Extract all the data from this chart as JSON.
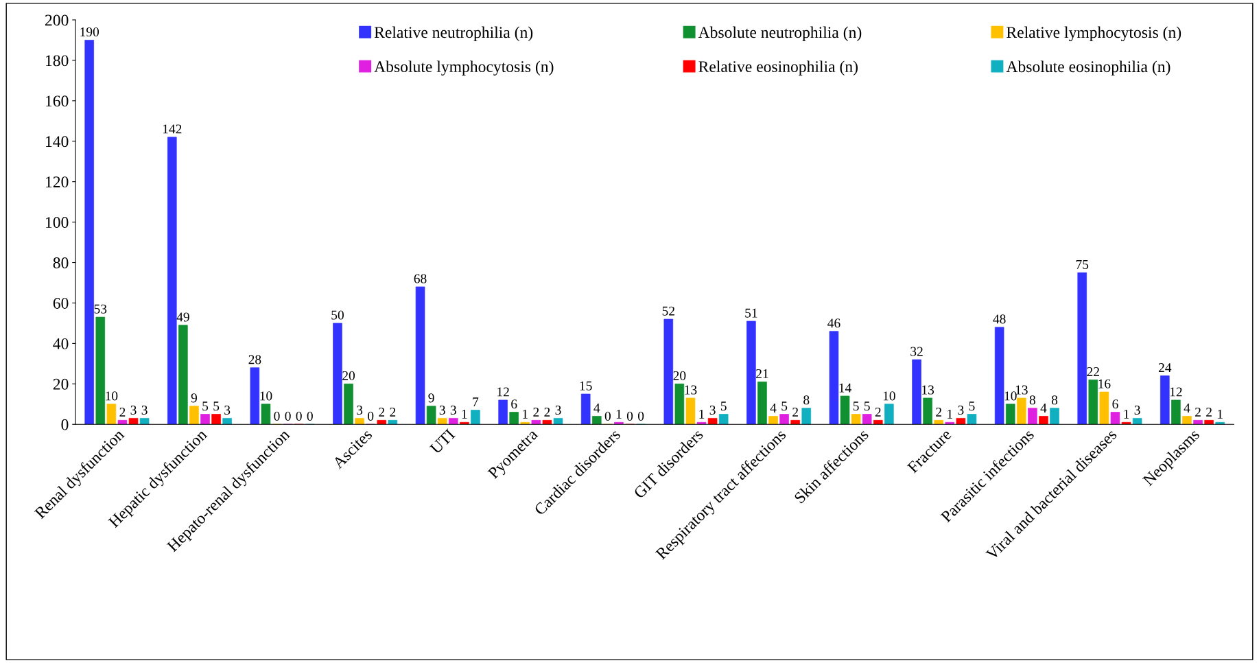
{
  "chart_data": {
    "type": "bar",
    "categories": [
      "Renal dysfunction",
      "Hepatic dysfunction",
      "Hepato-renal dysfunction",
      "Ascites",
      "UTI",
      "Pyometra",
      "Cardiac disorders",
      "GIT disorders",
      "Respiratory tract affections",
      "Skin affections",
      "Fracture",
      "Parasitic infections",
      "Viral and bacterial diseases",
      "Neoplasms"
    ],
    "series": [
      {
        "name": "Relative neutrophilia (n)",
        "color": "#3333ff",
        "values": [
          190,
          142,
          28,
          50,
          68,
          12,
          15,
          52,
          51,
          46,
          32,
          48,
          75,
          24
        ]
      },
      {
        "name": "Absolute neutrophilia (n)",
        "color": "#109030",
        "values": [
          53,
          49,
          10,
          20,
          9,
          6,
          4,
          20,
          21,
          14,
          13,
          10,
          22,
          12
        ]
      },
      {
        "name": "Relative lymphocytosis (n)",
        "color": "#ffc000",
        "values": [
          10,
          9,
          0,
          3,
          3,
          1,
          0,
          13,
          4,
          5,
          2,
          13,
          16,
          4
        ]
      },
      {
        "name": "Absolute lymphocytosis (n)",
        "color": "#e020e0",
        "values": [
          2,
          5,
          0,
          0,
          3,
          2,
          1,
          1,
          5,
          5,
          1,
          8,
          6,
          2
        ]
      },
      {
        "name": "Relative eosinophilia (n)",
        "color": "#ff0000",
        "values": [
          3,
          5,
          0,
          2,
          1,
          2,
          0,
          3,
          2,
          2,
          3,
          4,
          1,
          2
        ]
      },
      {
        "name": "Absolute eosinophilia (n)",
        "color": "#10b0c0",
        "values": [
          3,
          3,
          0,
          2,
          7,
          3,
          0,
          5,
          8,
          10,
          5,
          8,
          3,
          1
        ]
      }
    ],
    "ylim": [
      0,
      200
    ],
    "yticks": [
      0,
      20,
      40,
      60,
      80,
      100,
      120,
      140,
      160,
      180,
      200
    ],
    "data_labels": true,
    "grid": false,
    "legend": "top"
  }
}
